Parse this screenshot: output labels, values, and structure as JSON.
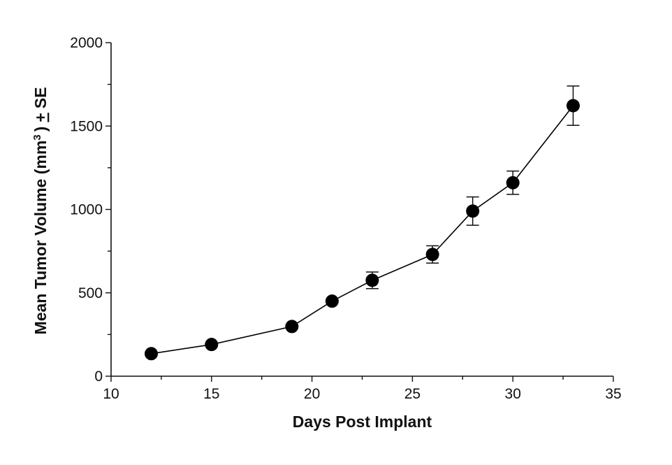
{
  "chart_data": {
    "type": "scatter",
    "title": "",
    "xlabel": "Days Post Implant",
    "ylabel": {
      "main": "Mean Tumor Volume (mm",
      "superscript": "3",
      "close": ")",
      "pm": "+",
      "rest": "SE"
    },
    "xlim": [
      10,
      35
    ],
    "ylim": [
      0,
      2000
    ],
    "xticks": [
      10,
      15,
      20,
      25,
      30,
      35
    ],
    "yticks": [
      0,
      500,
      1000,
      1500,
      2000
    ],
    "grid": false,
    "legend": "none",
    "series": [
      {
        "connected": true,
        "marker": "filled-circle",
        "color": "#000000",
        "x": [
          12,
          15,
          19,
          21,
          23,
          26,
          28,
          30,
          33
        ],
        "y": [
          135,
          190,
          298,
          450,
          575,
          730,
          990,
          1160,
          1622
        ],
        "error": [
          0,
          0,
          0,
          0,
          50,
          52,
          85,
          70,
          118
        ]
      }
    ]
  }
}
